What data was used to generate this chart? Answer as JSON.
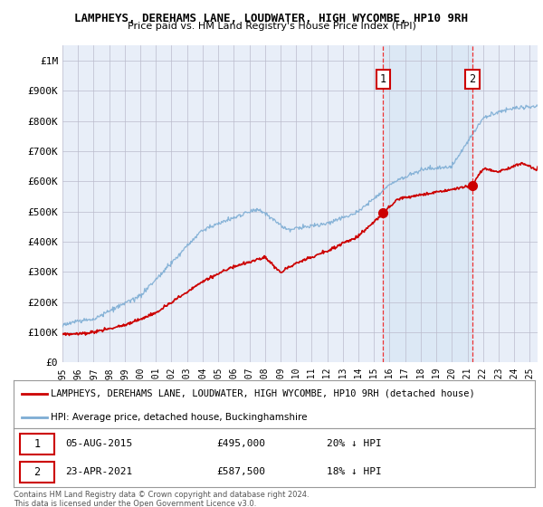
{
  "title": "LAMPHEYS, DEREHAMS LANE, LOUDWATER, HIGH WYCOMBE, HP10 9RH",
  "subtitle": "Price paid vs. HM Land Registry's House Price Index (HPI)",
  "ylim": [
    0,
    1050000
  ],
  "yticks": [
    0,
    100000,
    200000,
    300000,
    400000,
    500000,
    600000,
    700000,
    800000,
    900000,
    1000000
  ],
  "ytick_labels": [
    "£0",
    "£100K",
    "£200K",
    "£300K",
    "£400K",
    "£500K",
    "£600K",
    "£700K",
    "£800K",
    "£900K",
    "£1M"
  ],
  "plot_bg_color": "#e8eef8",
  "grid_color": "#bbbbcc",
  "hpi_color": "#7dadd4",
  "price_color": "#cc0000",
  "vline_color": "#ee3333",
  "shade_color": "#dce8f5",
  "transaction1_date": 2015.58,
  "transaction1_price": 495000,
  "transaction2_date": 2021.31,
  "transaction2_price": 587500,
  "legend_property": "LAMPHEYS, DEREHAMS LANE, LOUDWATER, HIGH WYCOMBE, HP10 9RH (detached house)",
  "legend_hpi": "HPI: Average price, detached house, Buckinghamshire",
  "footer": "Contains HM Land Registry data © Crown copyright and database right 2024.\nThis data is licensed under the Open Government Licence v3.0.",
  "xmin": 1995,
  "xmax": 2025.5,
  "xticks": [
    1995,
    1996,
    1997,
    1998,
    1999,
    2000,
    2001,
    2002,
    2003,
    2004,
    2005,
    2006,
    2007,
    2008,
    2009,
    2010,
    2011,
    2012,
    2013,
    2014,
    2015,
    2016,
    2017,
    2018,
    2019,
    2020,
    2021,
    2022,
    2023,
    2024,
    2025
  ]
}
